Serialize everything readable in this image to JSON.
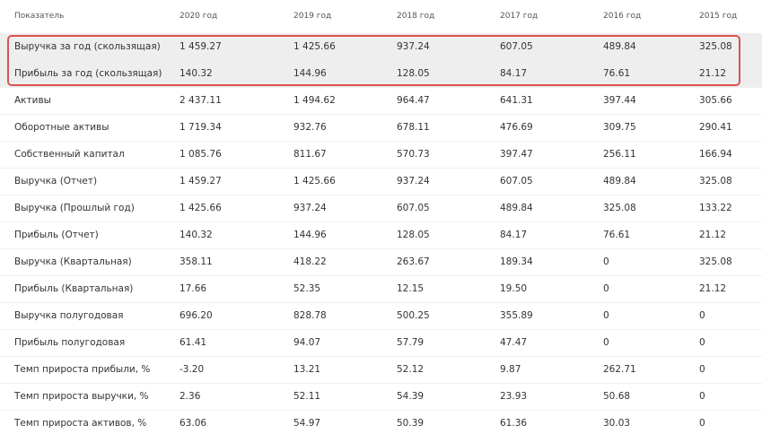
{
  "table": {
    "header": [
      "Показатель",
      "2020 год",
      "2019 год",
      "2018 год",
      "2017 год",
      "2016 год",
      "2015 год"
    ],
    "rows": [
      [
        "Выручка за год (скользящая)",
        "1 459.27",
        "1 425.66",
        "937.24",
        "607.05",
        "489.84",
        "325.08"
      ],
      [
        "Прибыль за год (скользящая)",
        "140.32",
        "144.96",
        "128.05",
        "84.17",
        "76.61",
        "21.12"
      ],
      [
        "Активы",
        "2 437.11",
        "1 494.62",
        "964.47",
        "641.31",
        "397.44",
        "305.66"
      ],
      [
        "Оборотные активы",
        "1 719.34",
        "932.76",
        "678.11",
        "476.69",
        "309.75",
        "290.41"
      ],
      [
        "Собственный капитал",
        "1 085.76",
        "811.67",
        "570.73",
        "397.47",
        "256.11",
        "166.94"
      ],
      [
        "Выручка (Отчет)",
        "1 459.27",
        "1 425.66",
        "937.24",
        "607.05",
        "489.84",
        "325.08"
      ],
      [
        "Выручка (Прошлый год)",
        "1 425.66",
        "937.24",
        "607.05",
        "489.84",
        "325.08",
        "133.22"
      ],
      [
        "Прибыль (Отчет)",
        "140.32",
        "144.96",
        "128.05",
        "84.17",
        "76.61",
        "21.12"
      ],
      [
        "Выручка (Квартальная)",
        "358.11",
        "418.22",
        "263.67",
        "189.34",
        "0",
        "325.08"
      ],
      [
        "Прибыль (Квартальная)",
        "17.66",
        "52.35",
        "12.15",
        "19.50",
        "0",
        "21.12"
      ],
      [
        "Выручка полугодовая",
        "696.20",
        "828.78",
        "500.25",
        "355.89",
        "0",
        "0"
      ],
      [
        "Прибыль полугодовая",
        "61.41",
        "94.07",
        "57.79",
        "47.47",
        "0",
        "0"
      ],
      [
        "Темп прироста прибыли, %",
        "-3.20",
        "13.21",
        "52.12",
        "9.87",
        "262.71",
        "0"
      ],
      [
        "Темп прироста выручки, %",
        "2.36",
        "52.11",
        "54.39",
        "23.93",
        "50.68",
        "0"
      ],
      [
        "Темп прироста активов, %",
        "63.06",
        "54.97",
        "50.39",
        "61.36",
        "30.03",
        "0"
      ]
    ]
  }
}
